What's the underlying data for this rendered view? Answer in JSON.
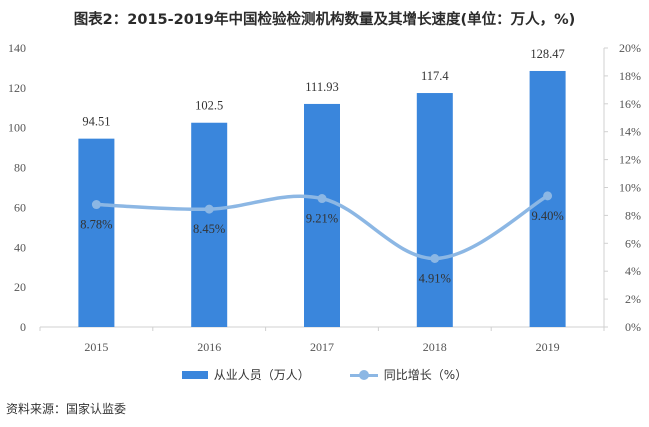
{
  "title": "图表2：2015-2019年中国检验检测机构数量及其增长速度(单位：万人，%)",
  "source": "资料来源：国家认监委",
  "colors": {
    "bar": "#3a86dc",
    "line": "#8cb7e4",
    "axis": "#d0d0d0"
  },
  "chart_data": {
    "type": "bar+line",
    "categories": [
      "2015",
      "2016",
      "2017",
      "2018",
      "2019"
    ],
    "series": [
      {
        "name": "从业人员（万人）",
        "type": "bar",
        "axis": "left",
        "values": [
          94.51,
          102.5,
          111.93,
          117.4,
          128.47
        ],
        "labels": [
          "94.51",
          "102.5",
          "111.93",
          "117.4",
          "128.47"
        ]
      },
      {
        "name": "同比增长（%）",
        "type": "line",
        "axis": "right",
        "values": [
          8.78,
          8.45,
          9.21,
          4.91,
          9.4
        ],
        "labels": [
          "8.78%",
          "8.45%",
          "9.21%",
          "4.91%",
          "9.40%"
        ]
      }
    ],
    "y_left": {
      "range": [
        0,
        140
      ],
      "ticks": [
        "0",
        "20",
        "40",
        "60",
        "80",
        "100",
        "120",
        "140"
      ]
    },
    "y_right": {
      "range": [
        0,
        20
      ],
      "ticks": [
        "0%",
        "2%",
        "4%",
        "6%",
        "8%",
        "10%",
        "12%",
        "14%",
        "16%",
        "18%",
        "20%"
      ]
    },
    "legend_position": "bottom",
    "grid": false
  }
}
